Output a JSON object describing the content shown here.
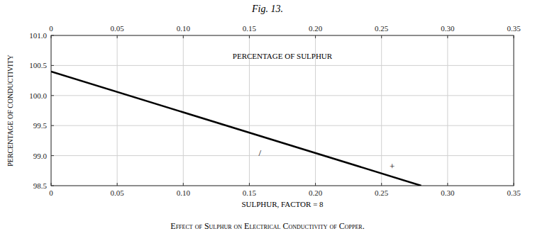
{
  "chart_data": {
    "type": "line",
    "title": "Fig. 13.",
    "caption": "Effect of Sulphur on Electrical Conductivity of Copper.",
    "top_xlabel": "PERCENTAGE OF SULPHUR",
    "xlabel": "SULPHUR, FACTOR = 8",
    "ylabel": "PERCENTAGE OF CONDUCTIVITY",
    "x": [
      0,
      0.28
    ],
    "values": [
      100.4,
      98.5
    ],
    "color": "#000000",
    "xlim": [
      0,
      0.35
    ],
    "ylim": [
      98.5,
      101.0
    ],
    "xticks": [
      0,
      0.05,
      {
        "value": 0.1,
        "label": "0.10"
      },
      0.15,
      {
        "value": 0.2,
        "label": "0.20"
      },
      0.25,
      {
        "value": 0.3,
        "label": "0.30"
      },
      0.35
    ],
    "yticks": [
      98.5,
      {
        "value": 99.0,
        "label": "99.0"
      },
      99.5,
      {
        "value": 100.0,
        "label": "100.0"
      },
      100.5,
      {
        "value": 101.0,
        "label": "101.0"
      }
    ],
    "grid": true,
    "annotations": [
      {
        "text": "/",
        "x": 0.158,
        "y": 99.05
      },
      {
        "text": "+",
        "x": 0.258,
        "y": 98.82
      }
    ]
  }
}
